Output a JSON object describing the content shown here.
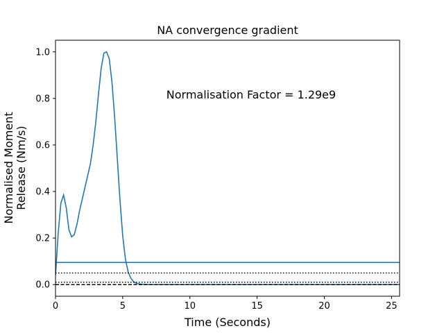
{
  "chart_data": {
    "type": "line",
    "title": "NA convergence gradient",
    "xlabel": "Time (Seconds)",
    "ylabel_lines": [
      "Normalised Moment",
      "Release (Nm/s)"
    ],
    "xlim": [
      0,
      25.6
    ],
    "ylim": [
      -0.05,
      1.05
    ],
    "x_ticks": [
      0,
      5,
      10,
      15,
      20,
      25
    ],
    "y_ticks": [
      0.0,
      0.2,
      0.4,
      0.6,
      0.8,
      1.0
    ],
    "x_tick_labels": [
      "0",
      "5",
      "10",
      "15",
      "20",
      "25"
    ],
    "y_tick_labels": [
      "0.0",
      "0.2",
      "0.4",
      "0.6",
      "0.8",
      "1.0"
    ],
    "grid": false,
    "annotation": "Normalisation Factor = 1.29e9",
    "line_color": "#1f77b4",
    "series": [
      {
        "style": "solid",
        "color": "#1f77b4",
        "x": [
          0,
          0.2,
          0.4,
          0.6,
          0.8,
          1.0,
          1.2,
          1.4,
          1.6,
          1.8,
          2.0,
          2.2,
          2.4,
          2.6,
          2.8,
          3.0,
          3.2,
          3.4,
          3.6,
          3.8,
          4.0,
          4.2,
          4.4,
          4.6,
          4.8,
          5.0,
          5.2,
          5.4,
          5.6,
          5.8,
          6.0,
          6.2,
          6.4,
          6.6,
          7.0,
          8.0,
          10.0,
          15.0,
          20.0,
          25.6
        ],
        "y": [
          0.04,
          0.22,
          0.35,
          0.385,
          0.33,
          0.235,
          0.205,
          0.215,
          0.26,
          0.32,
          0.37,
          0.42,
          0.47,
          0.52,
          0.6,
          0.7,
          0.82,
          0.93,
          0.995,
          1.0,
          0.97,
          0.87,
          0.72,
          0.54,
          0.36,
          0.21,
          0.11,
          0.055,
          0.028,
          0.013,
          0.006,
          0.003,
          0.0015,
          0.001,
          0.0,
          0.0,
          0.0,
          0.0,
          0.0,
          0.0
        ]
      },
      {
        "style": "solid",
        "color": "#1f77b4",
        "x": [
          0,
          25.6
        ],
        "y": [
          0.095,
          0.095
        ]
      },
      {
        "style": "dotted",
        "color": "#000000",
        "x": [
          0,
          25.6
        ],
        "y": [
          0.05,
          0.05
        ]
      },
      {
        "style": "dotted",
        "color": "#000000",
        "x": [
          0,
          25.6
        ],
        "y": [
          0.01,
          0.01
        ]
      },
      {
        "style": "dashed",
        "color": "#000000",
        "x": [
          0,
          25.6
        ],
        "y": [
          0.0,
          0.0
        ]
      }
    ]
  }
}
